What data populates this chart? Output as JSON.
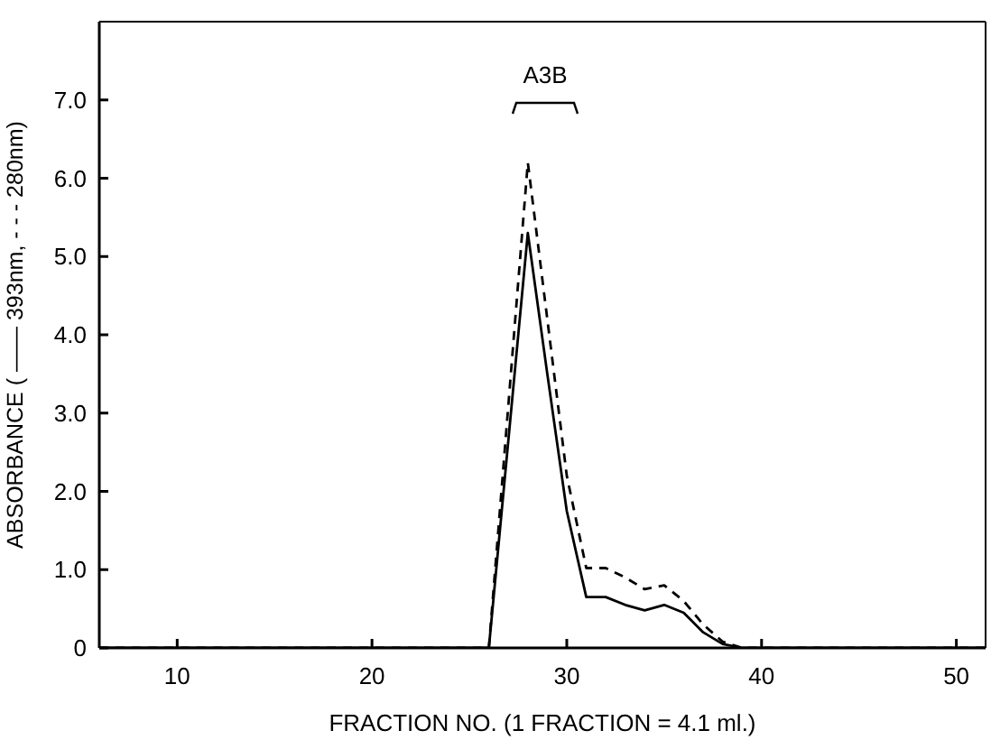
{
  "chart_data": {
    "type": "line",
    "xlabel": "FRACTION  NO.  (1 FRACTION = 4.1 ml.)",
    "ylabel": "ABSORBANCE    ( —— 393nm,  - - - 280nm)",
    "x": [
      6,
      26,
      27,
      28,
      29,
      30,
      31,
      32,
      33,
      34,
      35,
      36,
      37,
      38,
      39,
      51.5
    ],
    "series": [
      {
        "color": "#000000",
        "line_style": "solid",
        "values": [
          0,
          0,
          2.65,
          5.3,
          3.5,
          1.75,
          0.65,
          0.65,
          0.55,
          0.48,
          0.55,
          0.45,
          0.2,
          0.05,
          0,
          0
        ]
      },
      {
        "color": "#000000",
        "line_style": "dashed",
        "values": [
          0,
          0,
          3.1,
          6.2,
          4.2,
          2.2,
          1.02,
          1.02,
          0.9,
          0.75,
          0.8,
          0.6,
          0.3,
          0.08,
          0,
          0
        ]
      }
    ],
    "xlim": [
      6,
      51.5
    ],
    "ylim": [
      0,
      8
    ],
    "xticks": [
      10,
      20,
      30,
      40,
      50
    ],
    "yticks": [
      0,
      {
        "value": 1,
        "label": "1.0"
      },
      {
        "value": 2,
        "label": "2.0"
      },
      {
        "value": 3,
        "label": "3.0"
      },
      {
        "value": 4,
        "label": "4.0"
      },
      {
        "value": 5,
        "label": "5.0"
      },
      {
        "value": 6,
        "label": "6.0"
      },
      {
        "value": 7,
        "label": "7.0"
      }
    ],
    "annotations": [
      "A3B"
    ],
    "grid": false,
    "marker": "none"
  }
}
